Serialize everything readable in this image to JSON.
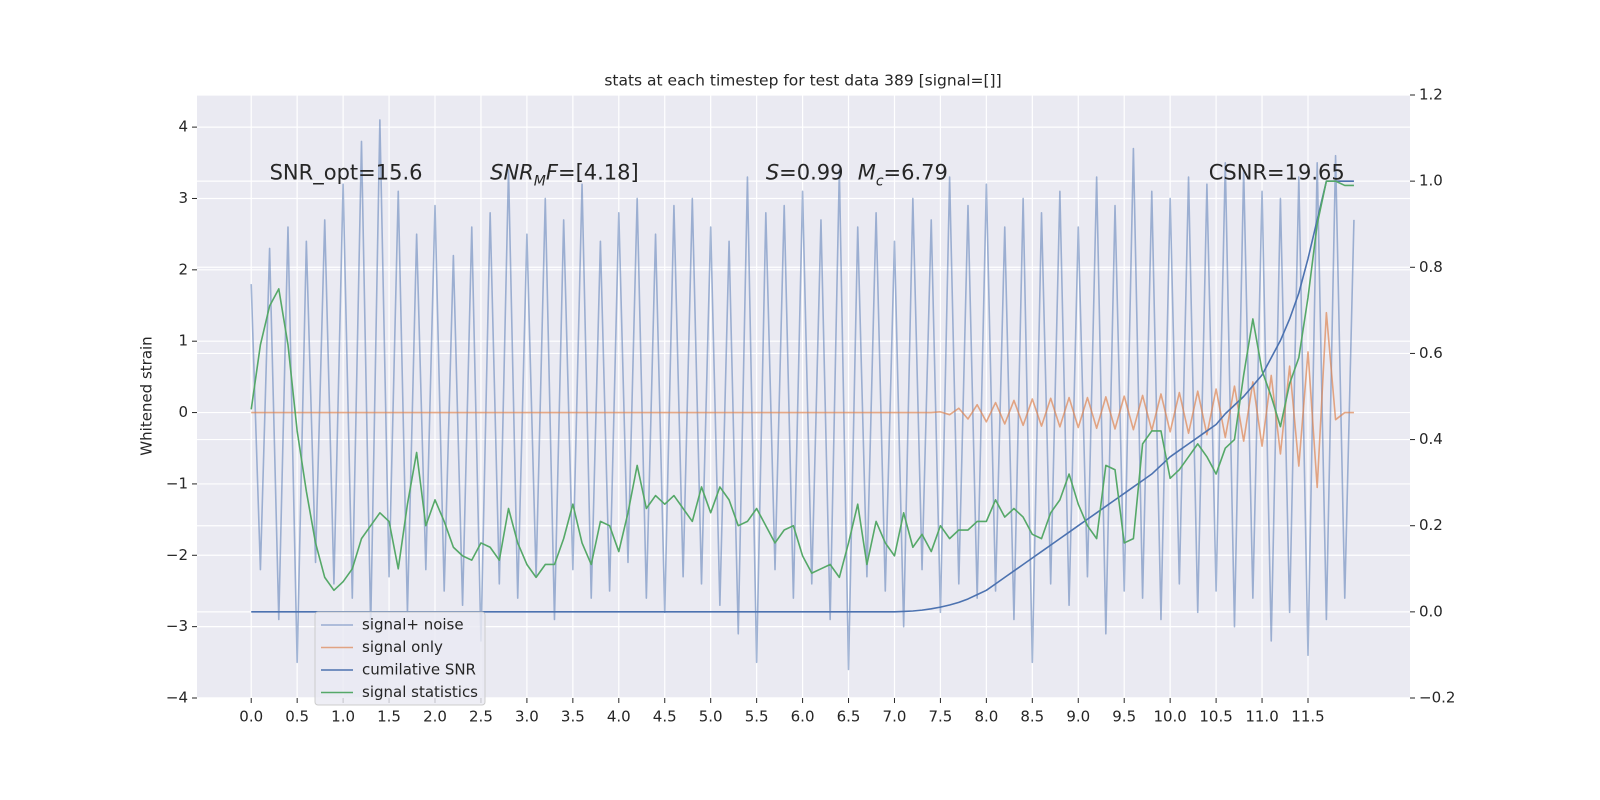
{
  "chart_data": {
    "type": "line",
    "title": "stats at each timestep for test data 389 [signal=[]]",
    "ylabel": "Whitened strain",
    "xlim": [
      -0.59,
      12.61
    ],
    "ylim": [
      -4,
      4.45
    ],
    "y2lim": [
      -0.2,
      1.2
    ],
    "grid": true,
    "legend": "lower left",
    "xticks": [
      {
        "value": 0,
        "label": "0.0"
      },
      0.5,
      {
        "value": 1,
        "label": "1.0"
      },
      1.5,
      {
        "value": 2,
        "label": "2.0"
      },
      2.5,
      {
        "value": 3,
        "label": "3.0"
      },
      3.5,
      {
        "value": 4,
        "label": "4.0"
      },
      4.5,
      {
        "value": 5,
        "label": "5.0"
      },
      5.5,
      {
        "value": 6,
        "label": "6.0"
      },
      6.5,
      {
        "value": 7,
        "label": "7.0"
      },
      7.5,
      {
        "value": 8,
        "label": "8.0"
      },
      8.5,
      {
        "value": 9,
        "label": "9.0"
      },
      9.5,
      {
        "value": 10,
        "label": "10.0"
      },
      10.5,
      {
        "value": 11,
        "label": "11.0"
      },
      11.5
    ],
    "yticks": [
      {
        "value": -4,
        "label": "−4"
      },
      {
        "value": -3,
        "label": "−3"
      },
      {
        "value": -2,
        "label": "−2"
      },
      {
        "value": -1,
        "label": "−1"
      },
      0,
      1,
      2,
      3,
      4
    ],
    "y2ticks": [
      {
        "value": -0.2,
        "label": "−0.2"
      },
      {
        "value": 0,
        "label": "0.0"
      },
      0.2,
      0.4,
      0.6,
      0.8,
      {
        "value": 1,
        "label": "1.0"
      },
      1.2
    ],
    "annotations": [
      {
        "x": 0.2,
        "y": 3.35,
        "parts": [
          {
            "text": "SNR_opt=15.6"
          }
        ]
      },
      {
        "x": 2.6,
        "y": 3.35,
        "parts": [
          {
            "text": "SNR",
            "italic": true
          },
          {
            "text": "M",
            "italic": true,
            "sub": true
          },
          {
            "text": "F",
            "italic": true
          },
          {
            "text": "=[4.18]"
          }
        ]
      },
      {
        "x": 5.6,
        "y": 3.35,
        "parts": [
          {
            "text": "S",
            "italic": true
          },
          {
            "text": "=0.99"
          }
        ]
      },
      {
        "x": 6.6,
        "y": 3.35,
        "parts": [
          {
            "text": "M",
            "italic": true
          },
          {
            "text": "c",
            "italic": true,
            "sub": true
          },
          {
            "text": "=6.79"
          }
        ]
      },
      {
        "x": 10.42,
        "y": 3.35,
        "parts": [
          {
            "text": "CSNR=19.65"
          }
        ]
      }
    ],
    "x": [
      0,
      0.1,
      0.2,
      0.3,
      0.4,
      0.5,
      0.6,
      0.7,
      0.8,
      0.9,
      1,
      1.1,
      1.2,
      1.3,
      1.4,
      1.5,
      1.6,
      1.7,
      1.8,
      1.9,
      2,
      2.1,
      2.2,
      2.3,
      2.4,
      2.5,
      2.6,
      2.7,
      2.8,
      2.9,
      3,
      3.1,
      3.2,
      3.3,
      3.4,
      3.5,
      3.6,
      3.7,
      3.8,
      3.9,
      4,
      4.1,
      4.2,
      4.3,
      4.4,
      4.5,
      4.6,
      4.7,
      4.8,
      4.9,
      5,
      5.1,
      5.2,
      5.3,
      5.4,
      5.5,
      5.6,
      5.7,
      5.8,
      5.9,
      6,
      6.1,
      6.2,
      6.3,
      6.4,
      6.5,
      6.6,
      6.7,
      6.8,
      6.9,
      7,
      7.1,
      7.2,
      7.3,
      7.4,
      7.5,
      7.6,
      7.7,
      7.8,
      7.9,
      8,
      8.1,
      8.2,
      8.3,
      8.4,
      8.5,
      8.6,
      8.7,
      8.8,
      8.9,
      9,
      9.1,
      9.2,
      9.3,
      9.4,
      9.5,
      9.6,
      9.7,
      9.8,
      9.9,
      10,
      10.1,
      10.2,
      10.3,
      10.4,
      10.5,
      10.6,
      10.7,
      10.8,
      10.9,
      11,
      11.1,
      11.2,
      11.3,
      11.4,
      11.5,
      11.6,
      11.7,
      11.8,
      11.9,
      12
    ],
    "series": [
      {
        "name": "signal+ noise",
        "color": "#4c72b0",
        "opacity": 0.5,
        "values": [
          1.8,
          -2.2,
          2.3,
          -2.9,
          2.6,
          -3.5,
          2.4,
          -2.1,
          2.7,
          -2.4,
          3.2,
          -2.6,
          3.8,
          -3.0,
          4.1,
          -2.3,
          3.1,
          -2.8,
          2.5,
          -2.2,
          2.9,
          -2.5,
          2.2,
          -2.7,
          2.6,
          -3.2,
          2.8,
          -2.4,
          3.4,
          -2.6,
          2.5,
          -2.3,
          3.0,
          -2.9,
          2.7,
          -2.2,
          3.2,
          -2.6,
          2.4,
          -2.5,
          2.8,
          -2.1,
          3.0,
          -2.6,
          2.5,
          -2.8,
          2.9,
          -2.3,
          3.0,
          -2.4,
          2.6,
          -2.7,
          2.4,
          -3.1,
          3.3,
          -3.5,
          2.8,
          -2.2,
          2.9,
          -2.6,
          3.1,
          -2.4,
          2.7,
          -2.9,
          3.4,
          -3.6,
          2.6,
          -2.3,
          2.8,
          -2.5,
          2.4,
          -3.0,
          3.0,
          -2.2,
          2.7,
          -2.8,
          3.3,
          -2.4,
          2.9,
          -2.6,
          3.2,
          -2.5,
          2.6,
          -2.9,
          3.0,
          -3.5,
          2.8,
          -2.4,
          3.1,
          -2.7,
          2.6,
          -2.3,
          3.3,
          -3.1,
          2.9,
          -2.5,
          3.7,
          -2.6,
          3.1,
          -2.9,
          3.0,
          -2.4,
          3.3,
          -2.8,
          3.2,
          -2.5,
          3.5,
          -3.0,
          3.4,
          -2.6,
          3.1,
          -3.2,
          3.0,
          -2.8,
          3.3,
          -3.4,
          3.5,
          -2.9,
          3.6,
          -2.6,
          2.7
        ]
      },
      {
        "name": "signal only",
        "color": "#dd8452",
        "opacity": 0.7,
        "values": [
          0,
          0,
          0,
          0,
          0,
          0,
          0,
          0,
          0,
          0,
          0,
          0,
          0,
          0,
          0,
          0,
          0,
          0,
          0,
          0,
          0,
          0,
          0,
          0,
          0,
          0,
          0,
          0,
          0,
          0,
          0,
          0,
          0,
          0,
          0,
          0,
          0,
          0,
          0,
          0,
          0,
          0,
          0,
          0,
          0,
          0,
          0,
          0,
          0,
          0,
          0,
          0,
          0,
          0,
          0,
          0,
          0,
          0,
          0,
          0,
          0,
          0,
          0,
          0,
          0,
          0,
          0,
          0,
          0,
          0,
          0,
          0,
          0,
          0,
          0,
          0.01,
          -0.03,
          0.06,
          -0.09,
          0.11,
          -0.13,
          0.14,
          -0.16,
          0.17,
          -0.18,
          0.19,
          -0.19,
          0.2,
          -0.2,
          0.21,
          -0.21,
          0.21,
          -0.22,
          0.22,
          -0.23,
          0.23,
          -0.24,
          0.24,
          -0.25,
          0.26,
          -0.27,
          0.28,
          -0.29,
          0.3,
          -0.31,
          0.33,
          -0.35,
          0.37,
          -0.4,
          0.43,
          -0.47,
          0.52,
          -0.58,
          0.65,
          -0.75,
          0.85,
          -1.05,
          1.4,
          -0.1,
          0,
          0
        ]
      },
      {
        "name": "cumilative SNR",
        "color": "#4c72b0",
        "opacity": 1,
        "axis": "y2",
        "values": [
          0,
          0,
          0,
          0,
          0,
          0,
          0,
          0,
          0,
          0,
          0,
          0,
          0,
          0,
          0,
          0,
          0,
          0,
          0,
          0,
          0,
          0,
          0,
          0,
          0,
          0,
          0,
          0,
          0,
          0,
          0,
          0,
          0,
          0,
          0,
          0,
          0,
          0,
          0,
          0,
          0,
          0,
          0,
          0,
          0,
          0,
          0,
          0,
          0,
          0,
          0,
          0,
          0,
          0,
          0,
          0,
          0,
          0,
          0,
          0,
          0,
          0,
          0,
          0,
          0,
          0,
          0,
          0,
          0,
          0,
          0,
          0.001,
          0.002,
          0.004,
          0.007,
          0.011,
          0.016,
          0.022,
          0.03,
          0.04,
          0.05,
          0.065,
          0.08,
          0.095,
          0.11,
          0.125,
          0.14,
          0.155,
          0.17,
          0.185,
          0.2,
          0.215,
          0.23,
          0.245,
          0.26,
          0.275,
          0.29,
          0.305,
          0.32,
          0.34,
          0.36,
          0.375,
          0.39,
          0.405,
          0.42,
          0.435,
          0.46,
          0.48,
          0.5,
          0.525,
          0.55,
          0.59,
          0.63,
          0.68,
          0.74,
          0.82,
          0.91,
          1,
          1,
          1,
          1
        ]
      },
      {
        "name": "signal statistics",
        "color": "#55a868",
        "opacity": 1,
        "axis": "y2",
        "values": [
          0.47,
          0.62,
          0.71,
          0.75,
          0.62,
          0.42,
          0.28,
          0.16,
          0.08,
          0.05,
          0.07,
          0.1,
          0.17,
          0.2,
          0.23,
          0.21,
          0.1,
          0.25,
          0.37,
          0.2,
          0.26,
          0.21,
          0.15,
          0.13,
          0.12,
          0.16,
          0.15,
          0.12,
          0.24,
          0.16,
          0.11,
          0.08,
          0.11,
          0.11,
          0.17,
          0.25,
          0.16,
          0.11,
          0.21,
          0.2,
          0.14,
          0.23,
          0.34,
          0.24,
          0.27,
          0.25,
          0.27,
          0.24,
          0.21,
          0.29,
          0.23,
          0.29,
          0.26,
          0.2,
          0.21,
          0.24,
          0.2,
          0.16,
          0.19,
          0.2,
          0.13,
          0.09,
          0.1,
          0.11,
          0.08,
          0.16,
          0.25,
          0.11,
          0.21,
          0.16,
          0.13,
          0.23,
          0.15,
          0.18,
          0.14,
          0.2,
          0.17,
          0.19,
          0.19,
          0.21,
          0.21,
          0.26,
          0.22,
          0.24,
          0.22,
          0.18,
          0.17,
          0.23,
          0.26,
          0.32,
          0.25,
          0.2,
          0.17,
          0.34,
          0.33,
          0.16,
          0.17,
          0.39,
          0.42,
          0.42,
          0.31,
          0.33,
          0.36,
          0.39,
          0.36,
          0.32,
          0.38,
          0.4,
          0.55,
          0.68,
          0.56,
          0.5,
          0.43,
          0.53,
          0.59,
          0.73,
          0.9,
          1,
          1,
          0.99,
          0.99
        ]
      }
    ]
  }
}
